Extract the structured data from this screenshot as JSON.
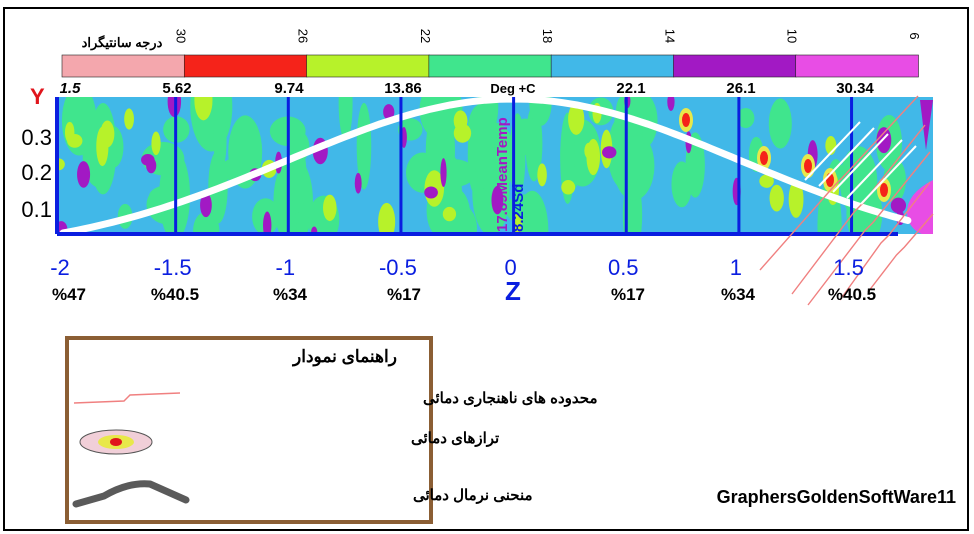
{
  "chart_data": {
    "type": "heatmap",
    "colorbar": {
      "title": "درجه سانتیگراد",
      "ticks": [
        "30",
        "26",
        "22",
        "18",
        "14",
        "10",
        "6"
      ],
      "bands": [
        "#f4a7ad",
        "#f5231a",
        "#b7f22a",
        "#40e58d",
        "#41b8e8",
        "#a219c4",
        "#e84de5"
      ]
    },
    "y_axis": {
      "label": "Y",
      "ticks": [
        "0.3",
        "0.2",
        "0.1"
      ]
    },
    "top_labels": [
      "1.5",
      "5.62",
      "9.74",
      "13.86",
      "Deg +C",
      "22.1",
      "26.1",
      "30.34"
    ],
    "x_axis": {
      "label": "Z",
      "ticks": [
        "-2",
        "-1.5",
        "-1",
        "-0.5",
        "0",
        "0.5",
        "1",
        "1.5"
      ],
      "percent_labels": [
        "%47",
        "%40.5",
        "%34",
        "%17",
        "%17",
        "%34",
        "%40.5"
      ]
    },
    "center_labels": [
      "17.89MeanTemp",
      "8.24Sd"
    ],
    "curve": "normal distribution, mean 0, sd 1",
    "anomaly_region": "z > 1",
    "legend": {
      "title": "راهنمای نمودار",
      "items": [
        {
          "label": "محدوده های ناهنجاری دمائی",
          "symbol": "anomaly-lines"
        },
        {
          "label": "ترازهای دمائی",
          "symbol": "temperature-levels"
        },
        {
          "label": "منحنی نرمال دمائی",
          "symbol": "normal-curve"
        }
      ]
    },
    "credit": "GraphersGoldenSoftWare11"
  }
}
